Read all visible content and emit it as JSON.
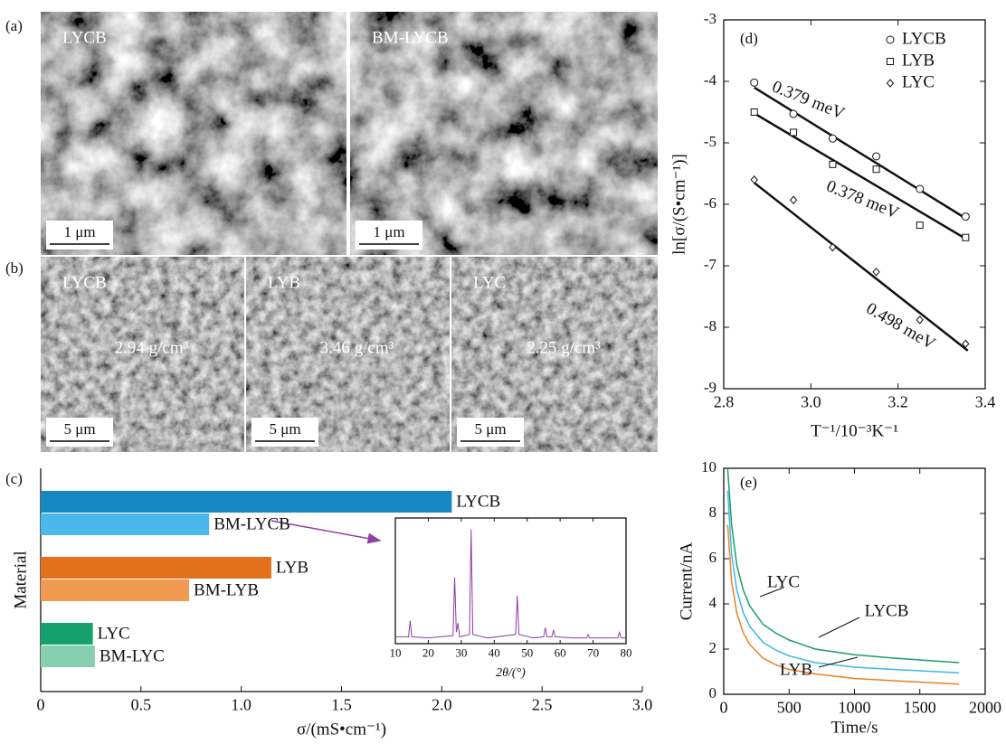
{
  "panel_labels": [
    "(a)",
    "(b)",
    "(c)",
    "(d)",
    "(e)"
  ],
  "sem_images": [
    {
      "label": "LYCB",
      "scale_bar": "1 μm"
    },
    {
      "label": "BM-LYCB",
      "scale_bar": "1 μm"
    },
    {
      "label": "LYCB",
      "density": "2.94 g/cm³",
      "scale_bar": "5 μm"
    },
    {
      "label": "LYB",
      "density": "3.46 g/cm³",
      "scale_bar": "5 μm"
    },
    {
      "label": "LYC",
      "density": "2.25 g/cm³",
      "scale_bar": "5 μm"
    }
  ],
  "chart_data": [
    {
      "type": "bar",
      "orientation": "horizontal",
      "categories": [
        "LYCB",
        "BM-LYCB",
        "LYB",
        "BM-LYB",
        "LYC",
        "BM-LYC"
      ],
      "values": [
        2.05,
        0.84,
        1.15,
        0.74,
        0.26,
        0.27
      ],
      "colors": [
        "#1787c2",
        "#4ab8ea",
        "#e2701c",
        "#f09a52",
        "#17a06f",
        "#86cfb0"
      ],
      "xlim": [
        0,
        3.0
      ],
      "xticks": [
        0,
        0.5,
        {
          "value": 1.0,
          "label": "1.0"
        },
        1.5,
        {
          "value": 2.0,
          "label": "2.0"
        },
        2.5,
        {
          "value": 3.0,
          "label": "3.0"
        }
      ],
      "x_label": "σ/(mS•cm⁻¹)",
      "y_label": "Material"
    },
    {
      "type": "line",
      "x": [
        10,
        14,
        14.5,
        15,
        20,
        27.5,
        28,
        28.5,
        29,
        29.5,
        32.5,
        33,
        33.5,
        38,
        46.5,
        47,
        47.5,
        52,
        55,
        55.5,
        56,
        57.5,
        58,
        58.5,
        64,
        68,
        68.5,
        69,
        77.5,
        78,
        78.5,
        80
      ],
      "series": [
        {
          "color": "#8e3fa3",
          "values": [
            6,
            6,
            20,
            6,
            5,
            7,
            58,
            10,
            18,
            6,
            8,
            100,
            8,
            5,
            8,
            42,
            8,
            5,
            6,
            14,
            6,
            6,
            12,
            6,
            5,
            5,
            8,
            5,
            5,
            10,
            5,
            5
          ]
        }
      ],
      "xlim": [
        10,
        80
      ],
      "xticks": [
        10,
        20,
        30,
        40,
        50,
        60,
        70,
        80
      ],
      "ylim": [
        0,
        110
      ],
      "x_label": "2θ/(°)"
    },
    {
      "type": "scatter",
      "x": [
        2.87,
        2.96,
        3.05,
        3.15,
        3.25,
        3.355
      ],
      "fit_x": [
        2.87,
        3.36
      ],
      "series": [
        {
          "name": "LYCB",
          "marker": "circle",
          "values": [
            -4.02,
            -4.53,
            -4.93,
            -5.22,
            -5.75,
            -6.2
          ],
          "fit": [
            -4.1,
            -6.25
          ],
          "annotation": "0.379 meV"
        },
        {
          "name": "LYB",
          "marker": "square",
          "values": [
            -4.5,
            -4.83,
            -5.35,
            -5.43,
            -6.34,
            -6.54
          ],
          "fit": [
            -4.52,
            -6.58
          ],
          "annotation": "0.378 meV"
        },
        {
          "name": "LYC",
          "marker": "diamond",
          "values": [
            -5.6,
            -5.93,
            -6.7,
            -7.1,
            -7.88,
            -8.27
          ],
          "fit": [
            -5.65,
            -8.38
          ],
          "annotation": "0.498 meV"
        }
      ],
      "xlim": [
        2.8,
        3.4
      ],
      "xticks": [
        2.8,
        {
          "value": 3.0,
          "label": "3.0"
        },
        3.2,
        3.4
      ],
      "ylim": [
        -9,
        -3
      ],
      "yticks": [
        -9,
        -8,
        -7,
        -6,
        -5,
        -4,
        -3
      ],
      "x_label": "T⁻¹/10⁻³K⁻¹",
      "y_label": "ln[σ/(S•cm⁻¹)]",
      "legend": "upper right"
    },
    {
      "type": "line",
      "x": [
        30,
        60,
        100,
        150,
        200,
        300,
        400,
        500,
        700,
        1000,
        1300,
        1800
      ],
      "series": [
        {
          "name": "LYC",
          "color": "#1a9e6a",
          "values": [
            10,
            7.5,
            5.7,
            4.6,
            3.9,
            3.1,
            2.7,
            2.4,
            2.0,
            1.75,
            1.6,
            1.4
          ]
        },
        {
          "name": "LYCB",
          "color": "#3bb8e8",
          "values": [
            9,
            6.2,
            4.6,
            3.6,
            3.0,
            2.3,
            1.95,
            1.7,
            1.4,
            1.2,
            1.1,
            0.95
          ]
        },
        {
          "name": "LYB",
          "color": "#f07f22",
          "values": [
            7.5,
            5,
            3.6,
            2.7,
            2.2,
            1.6,
            1.3,
            1.1,
            0.9,
            0.7,
            0.6,
            0.45
          ]
        }
      ],
      "xlim": [
        0,
        2000
      ],
      "xticks": [
        0,
        500,
        1000,
        1500,
        2000
      ],
      "ylim": [
        0,
        10
      ],
      "yticks": [
        0,
        2,
        4,
        6,
        8,
        10
      ],
      "x_label": "Time/s",
      "y_label": "Current/nA"
    }
  ]
}
